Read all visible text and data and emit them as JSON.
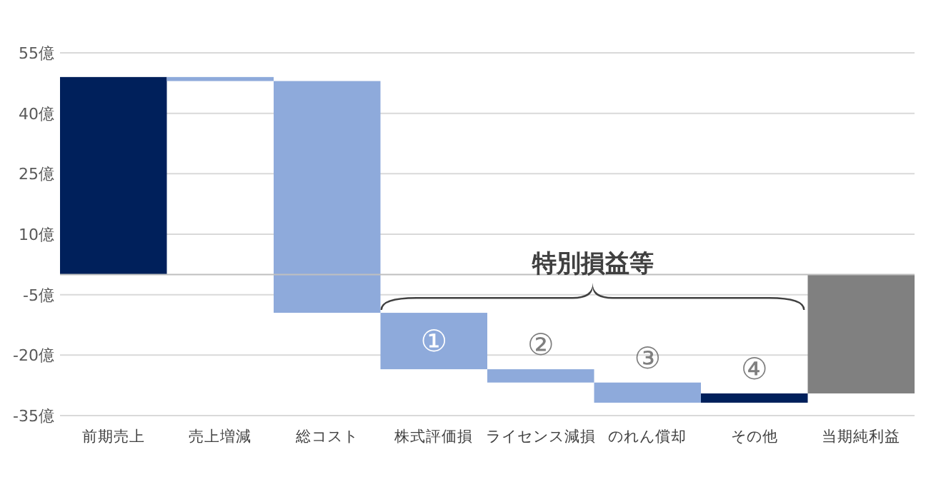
{
  "chart_data": {
    "type": "bar",
    "categories": [
      "前期売上",
      "売上増減",
      "総コスト",
      "株式評価損",
      "ライセンス減損",
      "のれん償却",
      "その他",
      "当期純利益"
    ],
    "values": [
      49,
      -1,
      -57.5,
      -14,
      -3.3,
      -5,
      2.3,
      -29.5
    ],
    "base": [
      0,
      49,
      48,
      -9.5,
      -23.5,
      -26.8,
      -31.8,
      0
    ],
    "colors": [
      "#00205b",
      "#8eaadb",
      "#8eaadb",
      "#8eaadb",
      "#8eaadb",
      "#8eaadb",
      "#00205b",
      "#808080"
    ],
    "ylim": [
      -35,
      55
    ],
    "yticks": [
      {
        "value": 55,
        "label": "55億"
      },
      {
        "value": 40,
        "label": "40億"
      },
      {
        "value": 25,
        "label": "25億"
      },
      {
        "value": 10,
        "label": "10億"
      },
      {
        "value": -5,
        "label": "-5億"
      },
      {
        "value": -20,
        "label": "-20億"
      },
      {
        "value": -35,
        "label": "-35億"
      }
    ],
    "grid": "y",
    "annotations": [
      "特別損益等",
      "①",
      "②",
      "③",
      "④"
    ]
  }
}
